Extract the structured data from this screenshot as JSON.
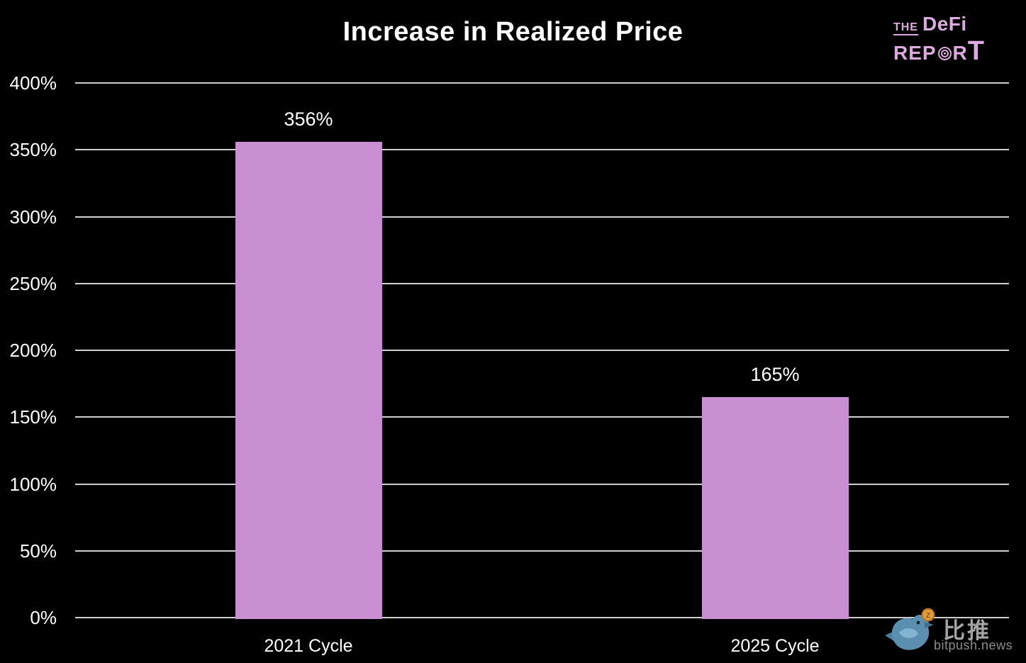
{
  "header": {
    "title": "Increase in Realized Price"
  },
  "logo": {
    "the": "THE",
    "defi": "DeFi",
    "rep": "REP",
    "r": "R",
    "t": "T"
  },
  "chart_data": {
    "type": "bar",
    "title": "Increase in Realized Price",
    "categories": [
      "2021 Cycle",
      "2025 Cycle"
    ],
    "values": [
      356,
      165
    ],
    "bar_labels": [
      "356%",
      "165%"
    ],
    "xlabel": "",
    "ylabel": "",
    "ylim": [
      0,
      400
    ],
    "ytick_step": 50,
    "ytick_labels": [
      "0%",
      "50%",
      "100%",
      "150%",
      "200%",
      "250%",
      "300%",
      "350%",
      "400%"
    ],
    "grid": true,
    "legend": false,
    "bar_color": "#c98fd2",
    "gridline_color": "#cfcfcf",
    "background_color": "#000000",
    "text_color": "#ffffff"
  },
  "watermark": {
    "cn": "比推",
    "en": "bitpush.news"
  },
  "colors": {
    "logo_pink": "#dcaade",
    "bird_blue": "#5b8fb0",
    "bird_wing": "#82b4d2",
    "coin_orange": "#e29d3f",
    "watermark_gray": "#a3a3a3"
  }
}
